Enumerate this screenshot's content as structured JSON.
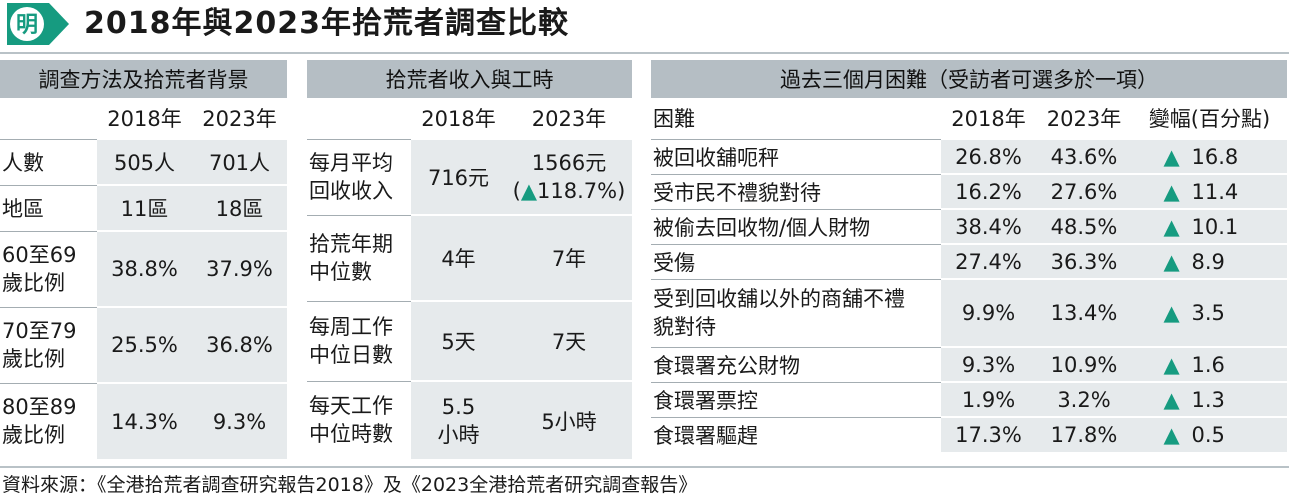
{
  "title": "2018年與2023年拾荒者調查比較",
  "logo_text": "明",
  "colors": {
    "accent": "#169b80",
    "header_bg": "#b5bec4",
    "cell_shade": "#e6eaec"
  },
  "panel1": {
    "heading": "調查方法及拾荒者背景",
    "year_2018": "2018年",
    "year_2023": "2023年",
    "rows": [
      {
        "label": "人數",
        "v2018": "505人",
        "v2023": "701人"
      },
      {
        "label": "地區",
        "v2018": "11區",
        "v2023": "18區"
      },
      {
        "label": "60至69歲比例",
        "v2018": "38.8%",
        "v2023": "37.9%"
      },
      {
        "label": "70至79歲比例",
        "v2018": "25.5%",
        "v2023": "36.8%"
      },
      {
        "label": "80至89歲比例",
        "v2018": "14.3%",
        "v2023": "9.3%"
      }
    ]
  },
  "panel2": {
    "heading": "拾荒者收入與工時",
    "year_2018": "2018年",
    "year_2023": "2023年",
    "rows": [
      {
        "label": "每月平均回收收入",
        "v2018": "716元",
        "v2023": "1566元",
        "v2023_sub_open": "(",
        "v2023_sub_arrow": "▲",
        "v2023_sub_val": "118.7%",
        "v2023_sub_close": ")"
      },
      {
        "label": "拾荒年期中位數",
        "v2018": "4年",
        "v2023": "7年"
      },
      {
        "label": "每周工作中位日數",
        "v2018": "5天",
        "v2023": "7天"
      },
      {
        "label": "每天工作中位時數",
        "v2018": "5.5小時",
        "v2023": "5小時"
      }
    ]
  },
  "panel3": {
    "heading": "過去三個月困難（受訪者可選多於一項）",
    "col_label": "困難",
    "year_2018": "2018年",
    "year_2023": "2023年",
    "col_change": "變幅(百分點)",
    "arrow": "▲",
    "rows": [
      {
        "label": "被回收舖呃秤",
        "v2018": "26.8%",
        "v2023": "43.6%",
        "change": "16.8"
      },
      {
        "label": "受市民不禮貌對待",
        "v2018": "16.2%",
        "v2023": "27.6%",
        "change": "11.4"
      },
      {
        "label": "被偷去回收物/個人財物",
        "v2018": "38.4%",
        "v2023": "48.5%",
        "change": "10.1"
      },
      {
        "label": "受傷",
        "v2018": "27.4%",
        "v2023": "36.3%",
        "change": "8.9"
      },
      {
        "label": "受到回收舖以外的商舖不禮貌對待",
        "v2018": "9.9%",
        "v2023": "13.4%",
        "change": "3.5"
      },
      {
        "label": "食環署充公財物",
        "v2018": "9.3%",
        "v2023": "10.9%",
        "change": "1.6"
      },
      {
        "label": "食環署票控",
        "v2018": "1.9%",
        "v2023": "3.2%",
        "change": "1.3"
      },
      {
        "label": "食環署驅趕",
        "v2018": "17.3%",
        "v2023": "17.8%",
        "change": "0.5"
      }
    ]
  },
  "source": "資料來源：《全港拾荒者調查研究報告2018》及《2023全港拾荒者研究調查報告》"
}
